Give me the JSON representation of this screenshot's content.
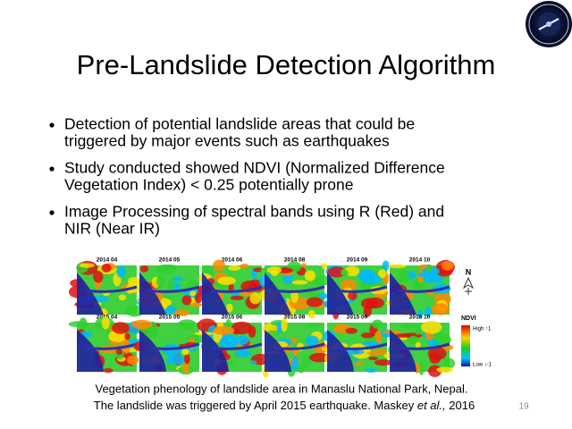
{
  "slide": {
    "title": "Pre-Landslide Detection Algorithm",
    "bullets": [
      {
        "lines": [
          "Detection of potential landslide areas that could be",
          "triggered by major events such as earthquakes"
        ]
      },
      {
        "lines": [
          "Study conducted showed NDVI (Normalized Difference",
          "Vegetation Index) < 0.25 potentially prone"
        ]
      },
      {
        "lines": [
          " Image Processing of spectral bands using R (Red) and",
          "NIR (Near IR)"
        ]
      }
    ],
    "figure": {
      "panel_labels": [
        [
          "2014 04",
          "2014 05",
          "2014 06",
          "2014 08",
          "2014 09",
          "2014 10"
        ],
        [
          "2015 04",
          "2015  05",
          "2015  06",
          "2015 08",
          "2015  09",
          "2015 10"
        ]
      ],
      "north": "N",
      "legend": {
        "title": "NDVI",
        "high": "High ↑1",
        "low": "Low ↓-1"
      }
    },
    "caption": {
      "line1": "Vegetation phenology of landslide area in Manaslu National Park, Nepal.",
      "line2_before": "The landslide was triggered by April 2015 earthquake. Maskey ",
      "line2_italic": "et al.,",
      "line2_after": " 2016"
    },
    "page_number": "19"
  }
}
